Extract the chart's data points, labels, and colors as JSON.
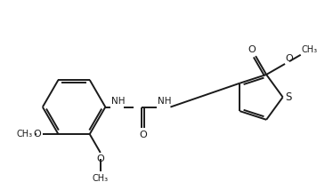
{
  "background_color": "#ffffff",
  "line_color": "#1a1a1a",
  "line_width": 1.4,
  "font_size": 7.5,
  "figsize": [
    3.74,
    2.14
  ],
  "dpi": 100,
  "xlim": [
    0,
    10
  ],
  "ylim": [
    0,
    5.73
  ]
}
